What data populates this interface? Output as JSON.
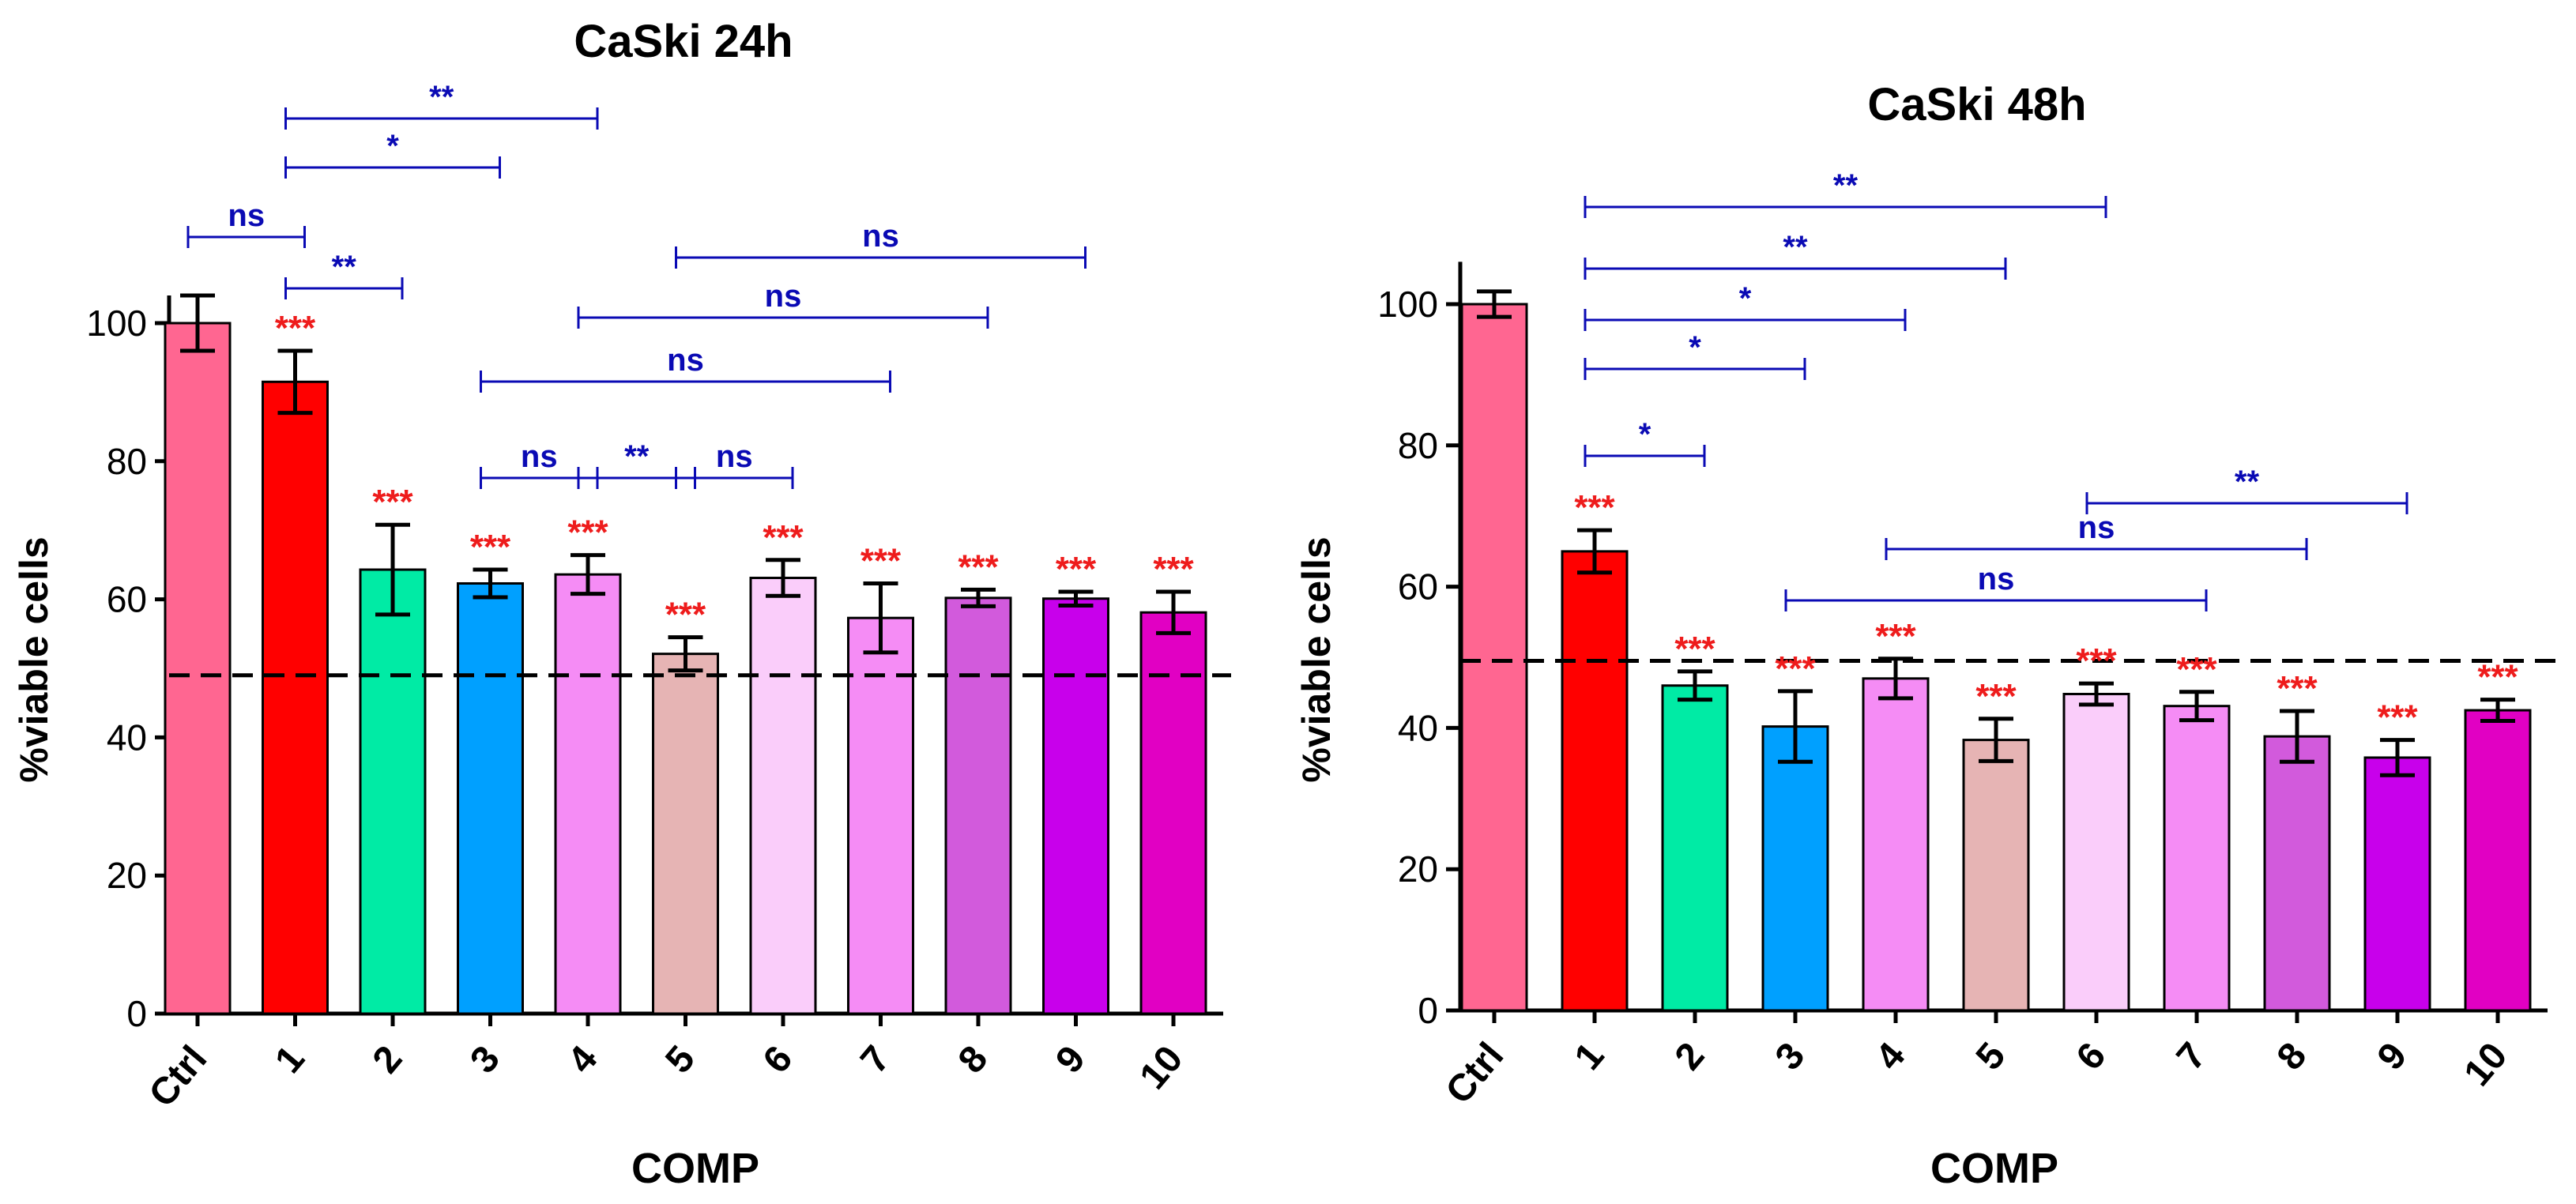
{
  "chart_data": [
    {
      "type": "bar",
      "title": "CaSki 24h",
      "xlabel": "COMP",
      "ylabel": "%viable cells",
      "ylim": [
        0,
        105
      ],
      "yticks": [
        0,
        20,
        40,
        60,
        80,
        100
      ],
      "categories": [
        "Ctrl",
        "1",
        "2",
        "3",
        "4",
        "5",
        "6",
        "7",
        "8",
        "9",
        "10"
      ],
      "values": [
        100,
        91.5,
        64.3,
        62.3,
        63.6,
        52.1,
        63.1,
        57.3,
        60.2,
        60.1,
        58.1
      ],
      "errors": [
        4.0,
        4.5,
        6.5,
        2.0,
        2.8,
        2.4,
        2.6,
        5.0,
        1.2,
        1.0,
        3.0
      ],
      "colors": [
        "#ff6691",
        "#ff0000",
        "#00eba5",
        "#00a0ff",
        "#f58cf5",
        "#e6b4b4",
        "#facdfa",
        "#f58cf5",
        "#d25adc",
        "#c800eb",
        "#e100c3"
      ],
      "significance_vs_ctrl": [
        "",
        "***",
        "***",
        "***",
        "***",
        "***",
        "***",
        "***",
        "***",
        "***",
        "***"
      ],
      "threshold_line": 49,
      "comparisons": [
        {
          "from": "Ctrl",
          "to": "1",
          "label": "ns"
        },
        {
          "from": "1",
          "to": "2",
          "label": "**"
        },
        {
          "from": "1",
          "to": "3",
          "label": "*"
        },
        {
          "from": "1",
          "to": "4",
          "label": "**"
        },
        {
          "from": "3",
          "to": "4",
          "label": "ns"
        },
        {
          "from": "4",
          "to": "5",
          "label": "**"
        },
        {
          "from": "5",
          "to": "6",
          "label": "ns"
        },
        {
          "from": "3",
          "to": "7",
          "label": "ns"
        },
        {
          "from": "4",
          "to": "8",
          "label": "ns"
        },
        {
          "from": "5",
          "to": "9",
          "label": "ns"
        }
      ]
    },
    {
      "type": "bar",
      "title": "CaSki 48h",
      "xlabel": "COMP",
      "ylabel": "%viable cells",
      "ylim": [
        0,
        105
      ],
      "yticks": [
        0,
        20,
        40,
        60,
        80,
        100
      ],
      "categories": [
        "Ctrl",
        "1",
        "2",
        "3",
        "4",
        "5",
        "6",
        "7",
        "8",
        "9",
        "10"
      ],
      "values": [
        100,
        65.0,
        46.0,
        40.2,
        47.0,
        38.3,
        44.8,
        43.1,
        38.8,
        35.8,
        42.5
      ],
      "errors": [
        1.8,
        3.0,
        2.0,
        5.0,
        2.8,
        3.0,
        1.5,
        2.0,
        3.6,
        2.5,
        1.5
      ],
      "colors": [
        "#ff6691",
        "#ff0000",
        "#00eba5",
        "#00a0ff",
        "#f58cf5",
        "#e6b4b4",
        "#facdfa",
        "#f58cf5",
        "#d25adc",
        "#c800eb",
        "#e100c3"
      ],
      "significance_vs_ctrl": [
        "",
        "***",
        "***",
        "***",
        "***",
        "***",
        "***",
        "***",
        "***",
        "***",
        "***"
      ],
      "threshold_line": 49.5,
      "comparisons": [
        {
          "from": "1",
          "to": "2",
          "label": "*"
        },
        {
          "from": "1",
          "to": "3",
          "label": "*"
        },
        {
          "from": "1",
          "to": "4",
          "label": "*"
        },
        {
          "from": "1",
          "to": "5",
          "label": "**"
        },
        {
          "from": "1",
          "to": "6",
          "label": "**"
        },
        {
          "from": "3",
          "to": "7",
          "label": "ns"
        },
        {
          "from": "4",
          "to": "8",
          "label": "ns"
        },
        {
          "from": "6",
          "to": "9",
          "label": "**"
        }
      ]
    }
  ]
}
